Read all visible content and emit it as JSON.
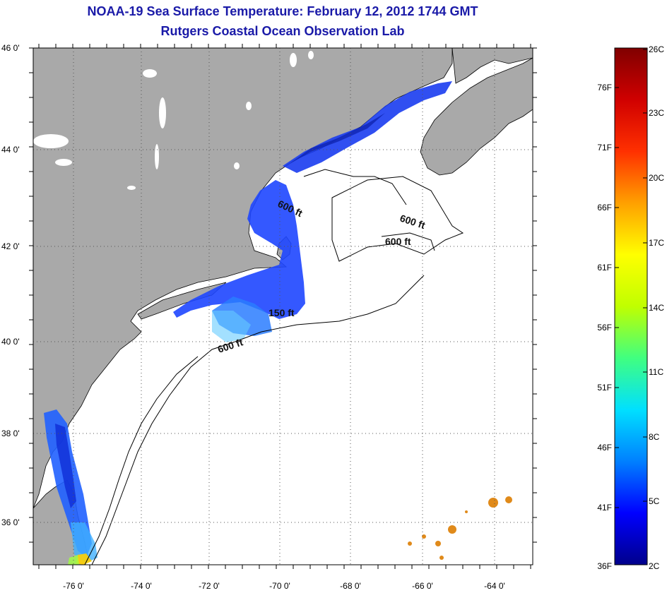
{
  "title": {
    "line1": "NOAA-19 Sea Surface Temperature:  February 12, 2012 1744 GMT",
    "line2": "Rutgers Coastal Ocean Observation Lab"
  },
  "map": {
    "lat_labels": [
      "46 0'",
      "44 0'",
      "42 0'",
      "40 0'",
      "38 0'",
      "36 0'"
    ],
    "lon_labels": [
      "-76 0'",
      "-74 0'",
      "-72 0'",
      "-70 0'",
      "-68 0'",
      "-66 0'",
      "-64 0'"
    ],
    "contour_labels": [
      "600 ft",
      "600 ft",
      "600 ft",
      "150 ft",
      "600 ft"
    ],
    "colors": {
      "land": "#a9a9a9",
      "water": "#ffffff",
      "lakes": "#ffffff",
      "grid": "#555555"
    }
  },
  "colorbar": {
    "celsius_labels": [
      "26C",
      "23C",
      "20C",
      "17C",
      "14C",
      "11C",
      "8C",
      "5C",
      "2C"
    ],
    "fahrenheit_labels": [
      "76F",
      "71F",
      "66F",
      "61F",
      "56F",
      "51F",
      "46F",
      "41F",
      "36F"
    ],
    "color_stops": [
      "#00008b",
      "#0000ff",
      "#0080ff",
      "#00e0ff",
      "#40ff80",
      "#c0ff00",
      "#ffff00",
      "#ffa000",
      "#ff3000",
      "#d00000",
      "#800000"
    ]
  }
}
